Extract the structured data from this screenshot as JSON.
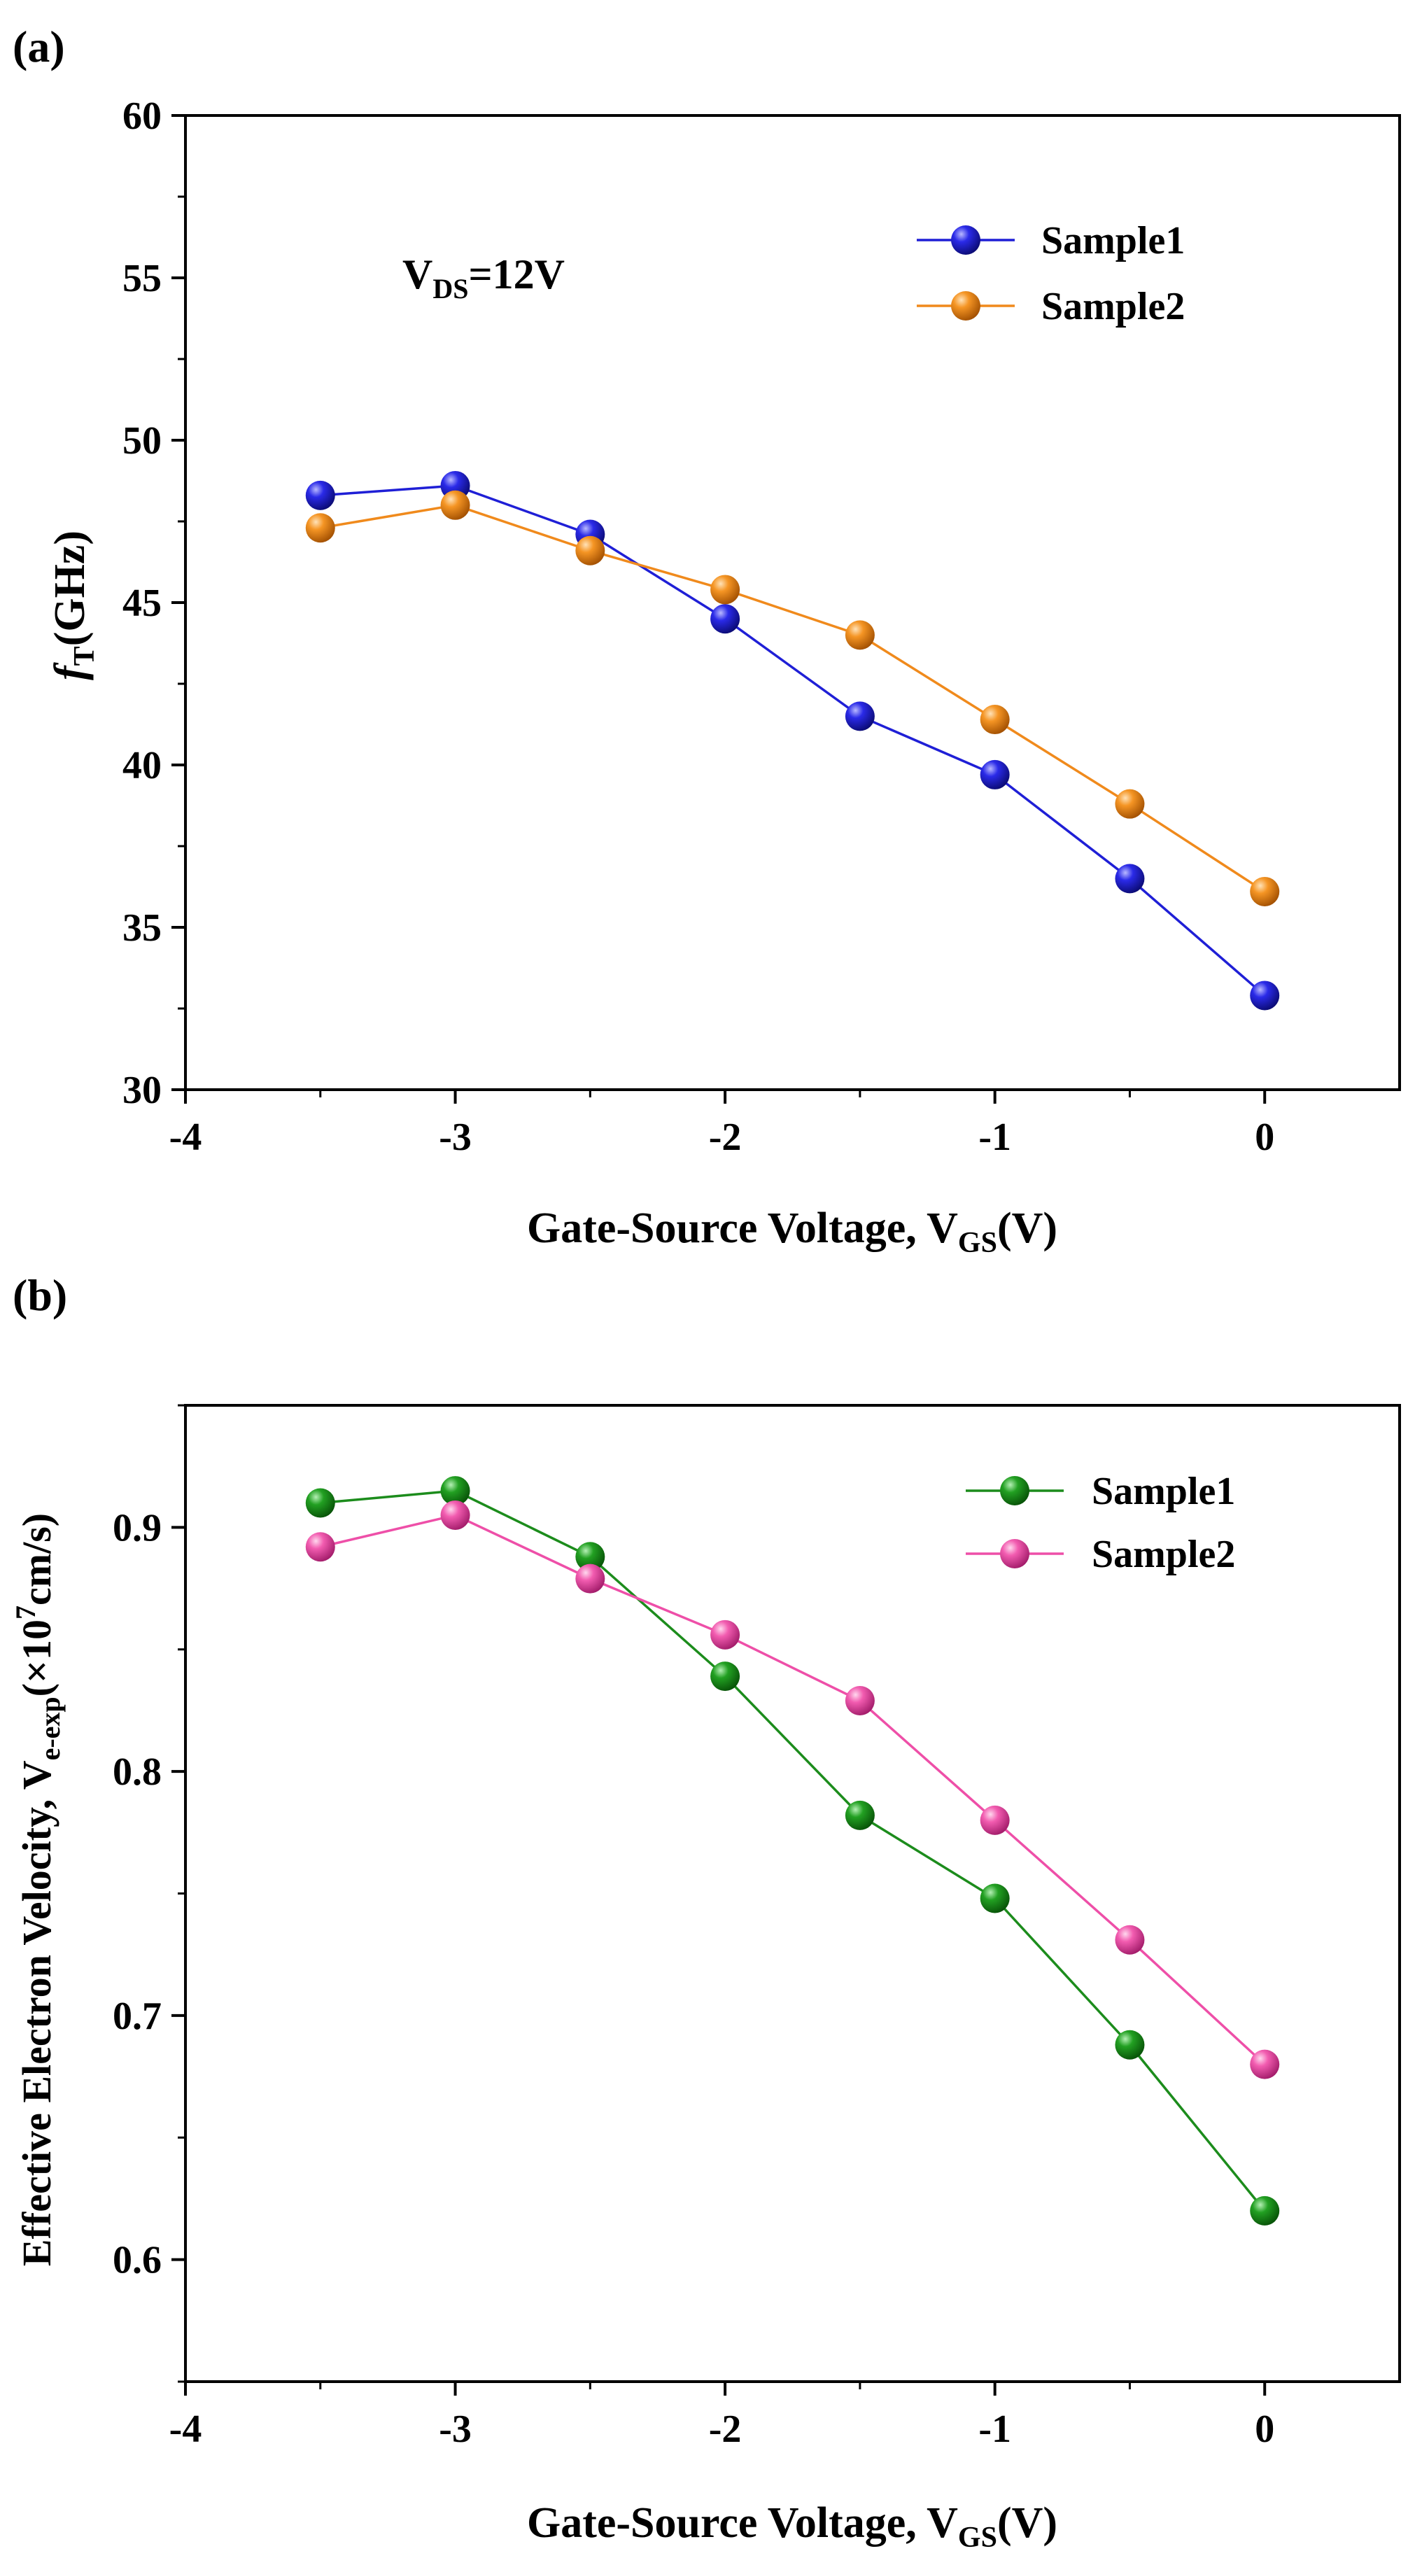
{
  "chart_data": [
    {
      "panel_label": "(a)",
      "type": "line",
      "annotation": {
        "main": "V",
        "sub": "DS",
        "rest": "=12V"
      },
      "ylabel": {
        "italic": "f",
        "sub": "T",
        "rest": "(GHz)"
      },
      "xlabel": {
        "main": "Gate-Source Voltage, V",
        "sub": "GS",
        "rest": "(V)"
      },
      "xlim": [
        -4,
        0.5
      ],
      "ylim": [
        30,
        60
      ],
      "xticks": [
        -4,
        -3,
        -2,
        -1,
        0
      ],
      "yticks": [
        30,
        35,
        40,
        45,
        50,
        55,
        60
      ],
      "xtick_labels": [
        "-4",
        "-3",
        "-2",
        "-1",
        "0"
      ],
      "ytick_labels": [
        "30",
        "35",
        "40",
        "45",
        "50",
        "55",
        "60"
      ],
      "legend_position": "top-right",
      "grid": false,
      "x": [
        -3.5,
        -3.0,
        -2.5,
        -2.0,
        -1.5,
        -1.0,
        -0.5,
        0.0
      ],
      "series": [
        {
          "name": "Sample1",
          "color": "#1f1fd6",
          "values": [
            48.3,
            48.6,
            47.1,
            44.5,
            41.5,
            39.7,
            36.5,
            32.9
          ]
        },
        {
          "name": "Sample2",
          "color": "#f08a1c",
          "values": [
            47.3,
            48.0,
            46.6,
            45.4,
            44.0,
            41.4,
            38.8,
            36.1
          ]
        }
      ]
    },
    {
      "panel_label": "(b)",
      "type": "line",
      "ylabel": {
        "main": "Effective Electron Velocity, V",
        "sub": "e-exp",
        "paren": "(×10",
        "sup": "7",
        "rest": "cm/s)"
      },
      "xlabel": {
        "main": "Gate-Source Voltage, V",
        "sub": "GS",
        "rest": "(V)"
      },
      "xlim": [
        -4,
        0.5
      ],
      "ylim": [
        0.55,
        0.95
      ],
      "xticks": [
        -4,
        -3,
        -2,
        -1,
        0
      ],
      "yticks": [
        0.6,
        0.7,
        0.8,
        0.9
      ],
      "xtick_labels": [
        "-4",
        "-3",
        "-2",
        "-1",
        "0"
      ],
      "ytick_labels": [
        "0.6",
        "0.7",
        "0.8",
        "0.9"
      ],
      "legend_position": "top-right",
      "grid": false,
      "x": [
        -3.5,
        -3.0,
        -2.5,
        -2.0,
        -1.5,
        -1.0,
        -0.5,
        0.0
      ],
      "series": [
        {
          "name": "Sample1",
          "color": "#1c8c1c",
          "values": [
            0.91,
            0.915,
            0.888,
            0.839,
            0.782,
            0.748,
            0.688,
            0.62
          ]
        },
        {
          "name": "Sample2",
          "color": "#ee4fa8",
          "values": [
            0.892,
            0.905,
            0.879,
            0.856,
            0.829,
            0.78,
            0.731,
            0.68
          ]
        }
      ]
    }
  ]
}
